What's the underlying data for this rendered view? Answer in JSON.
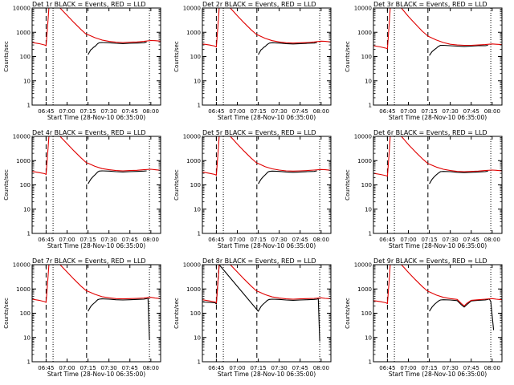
{
  "colors": {
    "events": "#000000",
    "lld": "#e00000",
    "background": "#ffffff"
  },
  "chart_data": {
    "type": "line",
    "layout": "3x3 grid of log-scale count-rate panels",
    "common": {
      "xlabel": "Start Time (28-Nov-10 06:35:00)",
      "ylabel": "Counts/sec",
      "x_unit": "minutes after 06:35:00",
      "xlim": [
        0,
        92
      ],
      "ylim": [
        1,
        10000
      ],
      "yscale": "log",
      "xticks": [
        10,
        25,
        40,
        55,
        70,
        85
      ],
      "xtick_labels": [
        "06:45",
        "07:00",
        "07:15",
        "07:30",
        "07:45",
        "08:00"
      ],
      "yticks": [
        1,
        10,
        100,
        1000,
        10000
      ],
      "ytick_labels": [
        "1",
        "10",
        "100",
        "1000",
        "10000"
      ],
      "grid": false,
      "dashed_markers_x": [
        10,
        39
      ],
      "dotted_markers_x": [
        15,
        84
      ]
    },
    "panels": [
      {
        "title": "Det 1r BLACK = Events, RED = LLD",
        "series": [
          {
            "name": "Events",
            "color": "#000000",
            "x": [
              40,
              42,
              43,
              44,
              45,
              46,
              47,
              48,
              50,
              55,
              60,
              65,
              70,
              75,
              80,
              82
            ],
            "y": [
              120,
              190,
              210,
              240,
              260,
              300,
              340,
              370,
              380,
              370,
              350,
              340,
              350,
              360,
              370,
              400
            ]
          },
          {
            "name": "LLD",
            "color": "#e00000",
            "x": [
              0,
              5,
              9,
              10,
              11,
              12,
              15,
              20,
              25,
              30,
              35,
              38,
              39,
              40,
              45,
              50,
              55,
              60,
              65,
              70,
              75,
              80,
              85,
              88,
              92
            ],
            "y": [
              380,
              340,
              300,
              280,
              1500,
              10000,
              10000,
              10000,
              5000,
              2500,
              1300,
              900,
              820,
              800,
              600,
              480,
              420,
              390,
              380,
              390,
              400,
              420,
              460,
              450,
              430
            ]
          }
        ]
      },
      {
        "title": "Det 2r BLACK = Events, RED = LLD",
        "series": [
          {
            "name": "Events",
            "color": "#000000",
            "x": [
              40,
              42,
              43,
              44,
              45,
              46,
              47,
              48,
              50,
              55,
              60,
              65,
              70,
              75,
              80,
              82
            ],
            "y": [
              120,
              190,
              210,
              240,
              260,
              300,
              330,
              360,
              370,
              360,
              340,
              330,
              340,
              350,
              360,
              380
            ]
          },
          {
            "name": "LLD",
            "color": "#e00000",
            "x": [
              0,
              5,
              9,
              10,
              11,
              12,
              15,
              20,
              25,
              30,
              35,
              38,
              39,
              40,
              45,
              50,
              55,
              60,
              65,
              70,
              75,
              80,
              85,
              88,
              92
            ],
            "y": [
              330,
              300,
              270,
              250,
              1400,
              10000,
              10000,
              10000,
              4800,
              2400,
              1250,
              880,
              800,
              760,
              560,
              450,
              400,
              370,
              360,
              370,
              380,
              400,
              430,
              420,
              400
            ]
          }
        ]
      },
      {
        "title": "Det 3r BLACK = Events, RED = LLD",
        "series": [
          {
            "name": "Events",
            "color": "#000000",
            "x": [
              40,
              42,
              43,
              44,
              45,
              46,
              47,
              48,
              50,
              55,
              60,
              65,
              70,
              75,
              80,
              82
            ],
            "y": [
              110,
              160,
              180,
              200,
              220,
              250,
              270,
              290,
              290,
              280,
              270,
              260,
              270,
              280,
              280,
              290
            ]
          },
          {
            "name": "LLD",
            "color": "#e00000",
            "x": [
              0,
              5,
              9,
              10,
              11,
              12,
              15,
              20,
              25,
              30,
              35,
              38,
              39,
              40,
              45,
              50,
              55,
              60,
              65,
              70,
              75,
              80,
              85,
              88,
              92
            ],
            "y": [
              280,
              250,
              220,
              210,
              1300,
              10000,
              10000,
              10000,
              4500,
              2200,
              1100,
              780,
              700,
              650,
              480,
              380,
              320,
              300,
              290,
              290,
              300,
              310,
              330,
              320,
              310
            ]
          }
        ]
      },
      {
        "title": "Det 4r BLACK = Events, RED = LLD",
        "series": [
          {
            "name": "Events",
            "color": "#000000",
            "x": [
              40,
              42,
              43,
              44,
              45,
              46,
              47,
              48,
              50,
              55,
              60,
              65,
              70,
              75,
              80,
              82
            ],
            "y": [
              110,
              170,
              200,
              230,
              260,
              300,
              340,
              370,
              380,
              370,
              350,
              340,
              350,
              360,
              370,
              380
            ]
          },
          {
            "name": "LLD",
            "color": "#e00000",
            "x": [
              0,
              5,
              9,
              10,
              11,
              12,
              15,
              20,
              25,
              30,
              35,
              38,
              39,
              40,
              45,
              50,
              55,
              60,
              65,
              70,
              75,
              80,
              85,
              88,
              92
            ],
            "y": [
              360,
              320,
              290,
              270,
              1500,
              10000,
              10000,
              10000,
              5000,
              2500,
              1300,
              900,
              810,
              780,
              580,
              470,
              420,
              390,
              380,
              390,
              400,
              420,
              440,
              420,
              400
            ]
          }
        ]
      },
      {
        "title": "Det 5r BLACK = Events, RED = LLD",
        "series": [
          {
            "name": "Events",
            "color": "#000000",
            "x": [
              40,
              42,
              43,
              44,
              45,
              46,
              47,
              48,
              50,
              55,
              60,
              65,
              70,
              75,
              80,
              82
            ],
            "y": [
              110,
              170,
              200,
              230,
              260,
              300,
              340,
              360,
              370,
              360,
              340,
              330,
              340,
              350,
              360,
              380
            ]
          },
          {
            "name": "LLD",
            "color": "#e00000",
            "x": [
              0,
              5,
              9,
              10,
              11,
              12,
              15,
              20,
              25,
              30,
              35,
              38,
              39,
              40,
              45,
              50,
              55,
              60,
              65,
              70,
              75,
              80,
              85,
              88,
              92
            ],
            "y": [
              340,
              300,
              270,
              250,
              1400,
              10000,
              10000,
              10000,
              4800,
              2400,
              1250,
              880,
              800,
              760,
              560,
              460,
              410,
              380,
              370,
              380,
              390,
              410,
              430,
              420,
              400
            ]
          }
        ]
      },
      {
        "title": "Det 6r BLACK = Events, RED = LLD",
        "series": [
          {
            "name": "Events",
            "color": "#000000",
            "x": [
              40,
              42,
              43,
              44,
              45,
              46,
              47,
              48,
              50,
              55,
              60,
              65,
              70,
              75,
              80,
              82
            ],
            "y": [
              110,
              170,
              200,
              230,
              260,
              290,
              320,
              350,
              360,
              350,
              330,
              320,
              330,
              340,
              350,
              370
            ]
          },
          {
            "name": "LLD",
            "color": "#e00000",
            "x": [
              0,
              5,
              9,
              10,
              11,
              12,
              15,
              20,
              25,
              30,
              35,
              38,
              39,
              40,
              45,
              50,
              55,
              60,
              65,
              70,
              75,
              80,
              85,
              88,
              92
            ],
            "y": [
              300,
              270,
              240,
              230,
              1300,
              10000,
              10000,
              10000,
              4600,
              2300,
              1200,
              850,
              760,
              720,
              540,
              440,
              390,
              360,
              350,
              360,
              370,
              390,
              410,
              400,
              380
            ]
          }
        ]
      },
      {
        "title": "Det 7r BLACK = Events, RED = LLD",
        "series": [
          {
            "name": "Events",
            "color": "#000000",
            "x": [
              40,
              42,
              43,
              44,
              45,
              46,
              47,
              48,
              50,
              55,
              60,
              65,
              70,
              75,
              80,
              82,
              83,
              84
            ],
            "y": [
              120,
              190,
              220,
              250,
              280,
              320,
              360,
              380,
              390,
              380,
              360,
              350,
              360,
              370,
              380,
              400,
              420,
              8
            ]
          },
          {
            "name": "LLD",
            "color": "#e00000",
            "x": [
              0,
              5,
              9,
              10,
              11,
              12,
              15,
              20,
              25,
              30,
              35,
              38,
              39,
              40,
              45,
              50,
              55,
              60,
              65,
              70,
              75,
              80,
              85,
              88,
              92
            ],
            "y": [
              380,
              340,
              300,
              280,
              1500,
              10000,
              10000,
              10000,
              5000,
              2500,
              1300,
              920,
              830,
              800,
              600,
              480,
              430,
              400,
              390,
              400,
              410,
              420,
              450,
              420,
              400
            ]
          }
        ]
      },
      {
        "title": "Det 8r BLACK = Events, RED = LLD",
        "series": [
          {
            "name": "Events",
            "color": "#000000",
            "x": [
              0,
              9,
              10,
              11,
              12,
              40,
              42,
              43,
              44,
              45,
              46,
              47,
              48,
              50,
              55,
              60,
              65,
              70,
              75,
              80,
              82,
              83,
              84
            ],
            "y": [
              290,
              270,
              240,
              1500,
              10000,
              120,
              190,
              220,
              250,
              280,
              320,
              350,
              370,
              380,
              370,
              350,
              340,
              350,
              360,
              370,
              380,
              400,
              7
            ]
          },
          {
            "name": "LLD",
            "color": "#e00000",
            "x": [
              0,
              5,
              9,
              10,
              11,
              12,
              15,
              20,
              25,
              30,
              35,
              38,
              39,
              40,
              45,
              50,
              55,
              60,
              65,
              70,
              75,
              80,
              85,
              88,
              92
            ],
            "y": [
              360,
              320,
              290,
              270,
              1500,
              10000,
              10000,
              10000,
              5000,
              2500,
              1300,
              900,
              810,
              780,
              580,
              470,
              420,
              390,
              380,
              390,
              400,
              410,
              430,
              410,
              390
            ]
          }
        ]
      },
      {
        "title": "Det 9r BLACK = Events, RED = LLD",
        "series": [
          {
            "name": "Events",
            "color": "#000000",
            "x": [
              40,
              42,
              43,
              44,
              45,
              46,
              47,
              48,
              50,
              55,
              60,
              63,
              65,
              67,
              70,
              75,
              80,
              82,
              83,
              84,
              86
            ],
            "y": [
              120,
              180,
              210,
              240,
              270,
              300,
              330,
              350,
              360,
              350,
              330,
              220,
              180,
              230,
              320,
              340,
              350,
              370,
              390,
              300,
              20
            ]
          },
          {
            "name": "LLD",
            "color": "#e00000",
            "x": [
              0,
              5,
              9,
              10,
              11,
              12,
              15,
              20,
              25,
              30,
              35,
              38,
              39,
              40,
              45,
              50,
              55,
              60,
              63,
              65,
              67,
              70,
              75,
              80,
              85,
              88,
              92
            ],
            "y": [
              330,
              300,
              270,
              250,
              1400,
              10000,
              10000,
              10000,
              4800,
              2400,
              1250,
              880,
              800,
              760,
              560,
              450,
              400,
              370,
              250,
              200,
              260,
              340,
              360,
              380,
              400,
              380,
              360
            ]
          }
        ]
      }
    ]
  }
}
